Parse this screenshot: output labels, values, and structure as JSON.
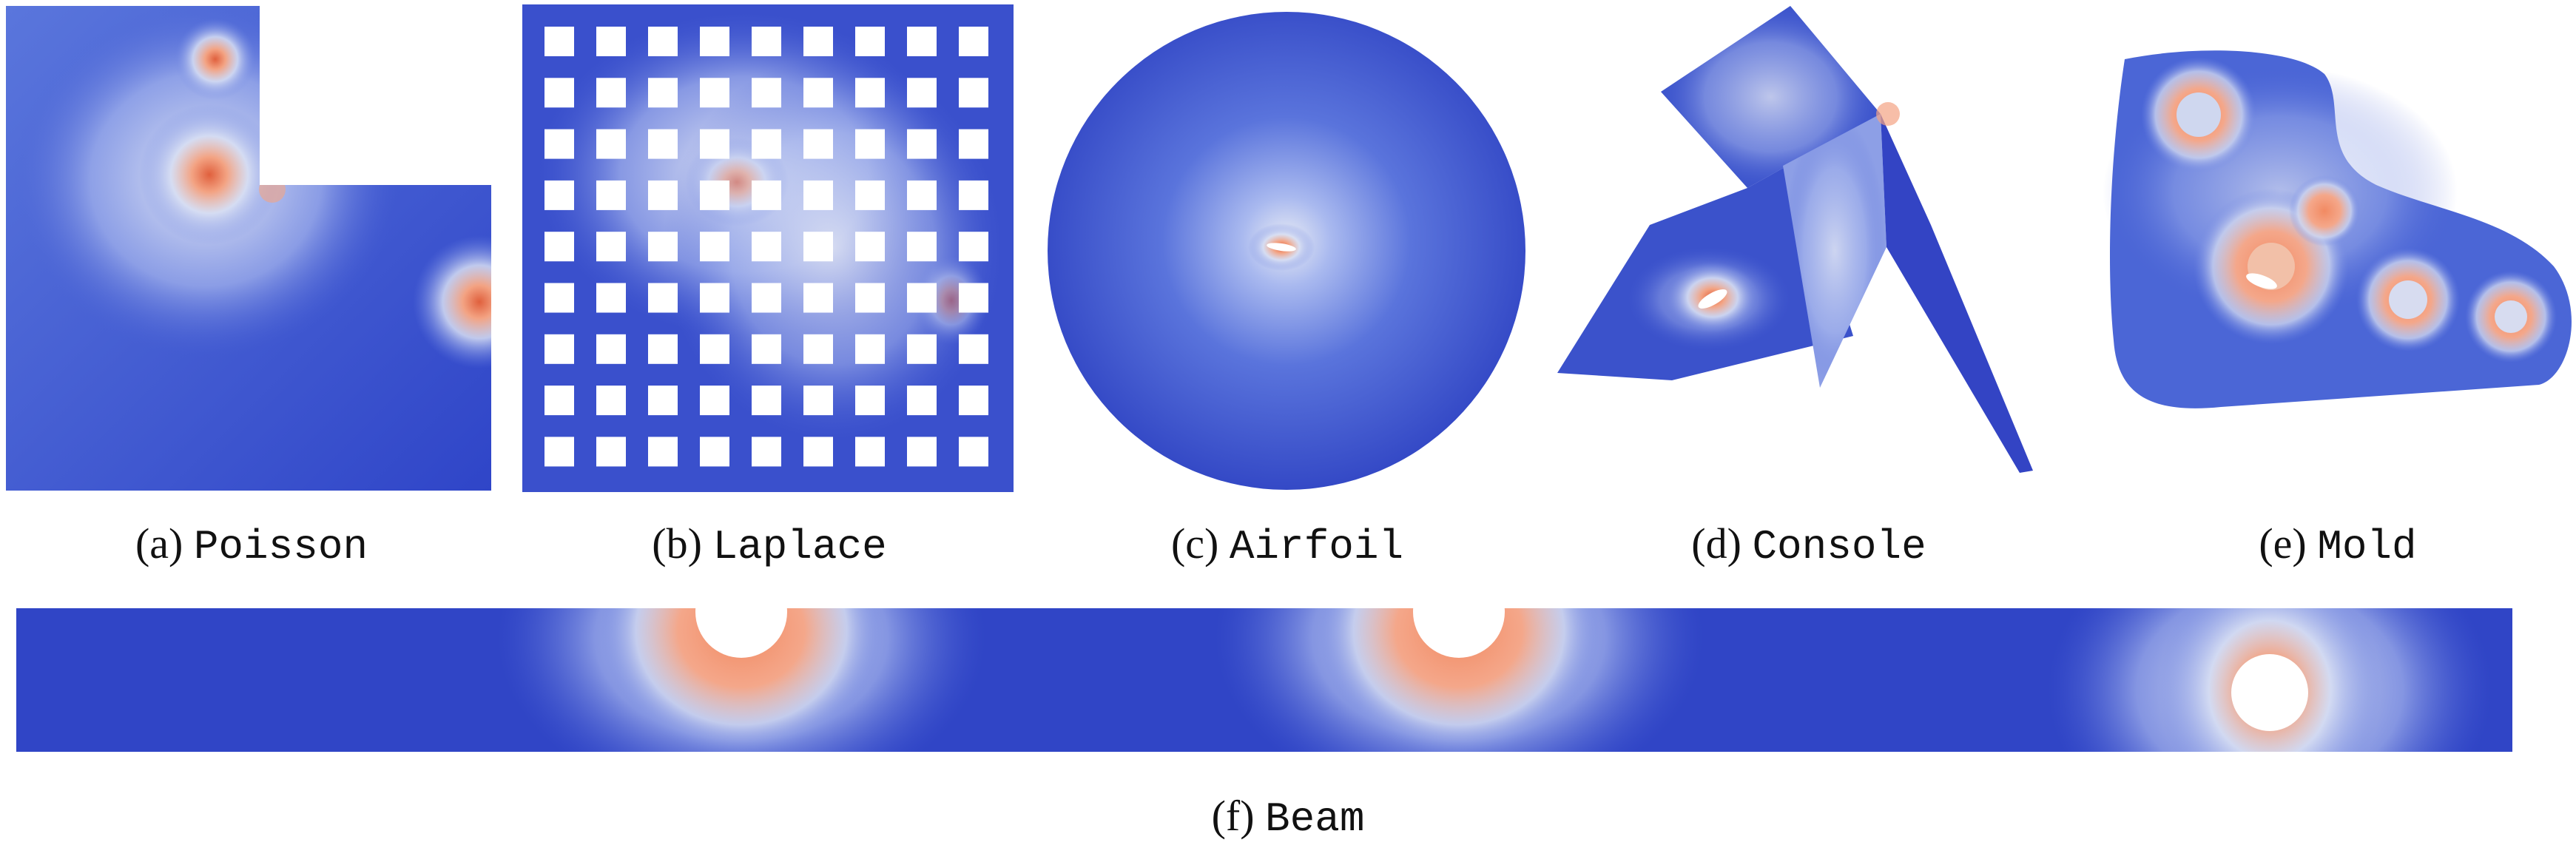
{
  "figure": {
    "panels": [
      {
        "id": "a",
        "letter": "(a)",
        "name": "Poisson"
      },
      {
        "id": "b",
        "letter": "(b)",
        "name": "Laplace"
      },
      {
        "id": "c",
        "letter": "(c)",
        "name": "Airfoil"
      },
      {
        "id": "d",
        "letter": "(d)",
        "name": "Console"
      },
      {
        "id": "e",
        "letter": "(e)",
        "name": "Mold"
      },
      {
        "id": "f",
        "letter": "(f)",
        "name": "Beam"
      }
    ],
    "colors": {
      "low": "#2f45c8",
      "mid": "#dfe3f0",
      "high": "#f0855a",
      "peak": "#c0402a",
      "background": "#ffffff"
    }
  }
}
